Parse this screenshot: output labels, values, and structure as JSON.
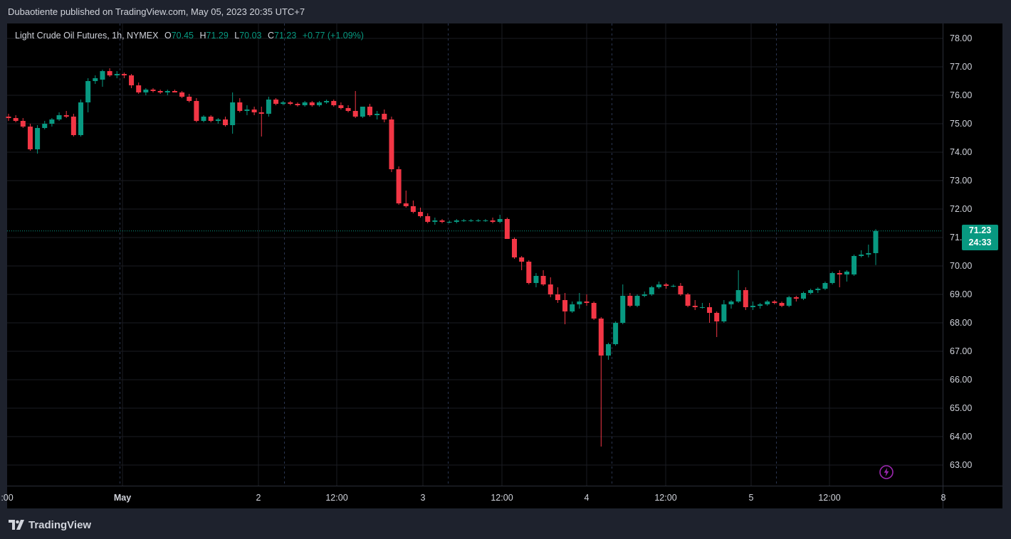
{
  "header": {
    "text": "Dubaotiente published on TradingView.com, May 05, 2023 20:35 UTC+7"
  },
  "legend": {
    "symbol": "Light Crude Oil Futures, 1h, NYMEX",
    "o_label": "O",
    "o_value": "70.45",
    "h_label": "H",
    "h_value": "71.29",
    "l_label": "L",
    "l_value": "70.03",
    "c_label": "C",
    "c_value": "71.23",
    "change": "+0.77 (+1.09%)"
  },
  "price_badge": {
    "price": "71.23",
    "countdown": "24:33"
  },
  "footer": {
    "brand": "TradingView",
    "logo_icon": "tradingview-logo-icon"
  },
  "icons": {
    "flash": "flash-icon"
  },
  "colors": {
    "up": "#089981",
    "down": "#f23645",
    "background": "#000000",
    "outer": "#1e222d",
    "flash": "#9c27b0"
  },
  "chart_data": {
    "type": "candlestick",
    "title": "Light Crude Oil Futures, 1h, NYMEX",
    "y_ticks": [
      "63.00",
      "64.00",
      "65.00",
      "66.00",
      "67.00",
      "68.00",
      "69.00",
      "70.00",
      "71.00",
      "72.00",
      "73.00",
      "74.00",
      "75.00",
      "76.00",
      "77.00",
      "78.00"
    ],
    "x_ticks": [
      {
        "label": ":00",
        "bold": false
      },
      {
        "label": "May",
        "bold": true
      },
      {
        "label": "2",
        "bold": false
      },
      {
        "label": "12:00",
        "bold": false
      },
      {
        "label": "3",
        "bold": false
      },
      {
        "label": "12:00",
        "bold": false
      },
      {
        "label": "4",
        "bold": false
      },
      {
        "label": "12:00",
        "bold": false
      },
      {
        "label": "5",
        "bold": false
      },
      {
        "label": "12:00",
        "bold": false
      },
      {
        "label": "8",
        "bold": false
      }
    ],
    "ylim": [
      62.5,
      78.4
    ],
    "last_price": 71.23,
    "grid": true,
    "candles": [
      {
        "o": 75.25,
        "h": 75.35,
        "l": 75.1,
        "c": 75.2
      },
      {
        "o": 75.2,
        "h": 75.3,
        "l": 75.05,
        "c": 75.1
      },
      {
        "o": 75.1,
        "h": 75.2,
        "l": 74.85,
        "c": 74.9
      },
      {
        "o": 74.9,
        "h": 75.0,
        "l": 74.05,
        "c": 74.1
      },
      {
        "o": 74.1,
        "h": 74.95,
        "l": 73.95,
        "c": 74.85
      },
      {
        "o": 74.85,
        "h": 75.1,
        "l": 74.8,
        "c": 75.0
      },
      {
        "o": 75.0,
        "h": 75.2,
        "l": 74.9,
        "c": 75.15
      },
      {
        "o": 75.15,
        "h": 75.4,
        "l": 75.1,
        "c": 75.3
      },
      {
        "o": 75.3,
        "h": 75.45,
        "l": 75.2,
        "c": 75.25
      },
      {
        "o": 75.25,
        "h": 75.35,
        "l": 74.55,
        "c": 74.6
      },
      {
        "o": 74.6,
        "h": 75.85,
        "l": 74.55,
        "c": 75.75
      },
      {
        "o": 75.75,
        "h": 76.6,
        "l": 75.4,
        "c": 76.5
      },
      {
        "o": 76.5,
        "h": 76.7,
        "l": 76.4,
        "c": 76.6
      },
      {
        "o": 76.55,
        "h": 76.9,
        "l": 76.3,
        "c": 76.85
      },
      {
        "o": 76.85,
        "h": 76.95,
        "l": 76.65,
        "c": 76.7
      },
      {
        "o": 76.7,
        "h": 76.85,
        "l": 76.6,
        "c": 76.75
      },
      {
        "o": 76.75,
        "h": 76.8,
        "l": 76.6,
        "c": 76.7
      },
      {
        "o": 76.7,
        "h": 76.75,
        "l": 76.25,
        "c": 76.35
      },
      {
        "o": 76.35,
        "h": 76.45,
        "l": 76.05,
        "c": 76.1
      },
      {
        "o": 76.1,
        "h": 76.25,
        "l": 76.0,
        "c": 76.2
      },
      {
        "o": 76.2,
        "h": 76.25,
        "l": 76.1,
        "c": 76.15
      },
      {
        "o": 76.15,
        "h": 76.2,
        "l": 76.05,
        "c": 76.1
      },
      {
        "o": 76.1,
        "h": 76.2,
        "l": 76.0,
        "c": 76.15
      },
      {
        "o": 76.15,
        "h": 76.2,
        "l": 76.1,
        "c": 76.1
      },
      {
        "o": 76.1,
        "h": 76.15,
        "l": 75.9,
        "c": 75.95
      },
      {
        "o": 75.95,
        "h": 76.05,
        "l": 75.75,
        "c": 75.8
      },
      {
        "o": 75.8,
        "h": 75.9,
        "l": 75.05,
        "c": 75.1
      },
      {
        "o": 75.1,
        "h": 75.3,
        "l": 75.05,
        "c": 75.25
      },
      {
        "o": 75.25,
        "h": 75.3,
        "l": 75.05,
        "c": 75.1
      },
      {
        "o": 75.1,
        "h": 75.2,
        "l": 75.0,
        "c": 75.15
      },
      {
        "o": 75.15,
        "h": 75.25,
        "l": 74.9,
        "c": 74.95
      },
      {
        "o": 74.95,
        "h": 76.1,
        "l": 74.65,
        "c": 75.75
      },
      {
        "o": 75.75,
        "h": 75.9,
        "l": 75.4,
        "c": 75.45
      },
      {
        "o": 75.45,
        "h": 75.65,
        "l": 75.3,
        "c": 75.5
      },
      {
        "o": 75.5,
        "h": 75.6,
        "l": 75.3,
        "c": 75.4
      },
      {
        "o": 75.4,
        "h": 75.6,
        "l": 74.55,
        "c": 75.35
      },
      {
        "o": 75.35,
        "h": 75.95,
        "l": 75.25,
        "c": 75.85
      },
      {
        "o": 75.85,
        "h": 75.9,
        "l": 75.65,
        "c": 75.7
      },
      {
        "o": 75.7,
        "h": 75.8,
        "l": 75.65,
        "c": 75.75
      },
      {
        "o": 75.75,
        "h": 75.8,
        "l": 75.65,
        "c": 75.7
      },
      {
        "o": 75.7,
        "h": 75.75,
        "l": 75.6,
        "c": 75.65
      },
      {
        "o": 75.65,
        "h": 75.8,
        "l": 75.6,
        "c": 75.75
      },
      {
        "o": 75.75,
        "h": 75.8,
        "l": 75.6,
        "c": 75.65
      },
      {
        "o": 75.65,
        "h": 75.8,
        "l": 75.6,
        "c": 75.75
      },
      {
        "o": 75.75,
        "h": 75.85,
        "l": 75.7,
        "c": 75.8
      },
      {
        "o": 75.8,
        "h": 75.85,
        "l": 75.6,
        "c": 75.65
      },
      {
        "o": 75.65,
        "h": 75.75,
        "l": 75.5,
        "c": 75.55
      },
      {
        "o": 75.55,
        "h": 75.65,
        "l": 75.4,
        "c": 75.45
      },
      {
        "o": 75.45,
        "h": 76.15,
        "l": 75.2,
        "c": 75.25
      },
      {
        "o": 75.25,
        "h": 75.6,
        "l": 75.2,
        "c": 75.6
      },
      {
        "o": 75.6,
        "h": 75.7,
        "l": 75.25,
        "c": 75.3
      },
      {
        "o": 75.3,
        "h": 75.45,
        "l": 75.15,
        "c": 75.35
      },
      {
        "o": 75.35,
        "h": 75.5,
        "l": 75.05,
        "c": 75.15
      },
      {
        "o": 75.15,
        "h": 75.25,
        "l": 73.3,
        "c": 73.4
      },
      {
        "o": 73.4,
        "h": 73.5,
        "l": 72.15,
        "c": 72.2
      },
      {
        "o": 72.2,
        "h": 72.65,
        "l": 72.05,
        "c": 72.1
      },
      {
        "o": 72.1,
        "h": 72.3,
        "l": 71.85,
        "c": 71.9
      },
      {
        "o": 71.9,
        "h": 72.05,
        "l": 71.7,
        "c": 71.75
      },
      {
        "o": 71.75,
        "h": 71.85,
        "l": 71.5,
        "c": 71.55
      },
      {
        "o": 71.55,
        "h": 71.7,
        "l": 71.45,
        "c": 71.6
      },
      {
        "o": 71.6,
        "h": 71.65,
        "l": 71.5,
        "c": 71.55
      },
      {
        "o": 71.55,
        "h": 71.6,
        "l": 71.5,
        "c": 71.55
      },
      {
        "o": 71.55,
        "h": 71.65,
        "l": 71.5,
        "c": 71.6
      },
      {
        "o": 71.6,
        "h": 71.65,
        "l": 71.55,
        "c": 71.6
      },
      {
        "o": 71.6,
        "h": 71.65,
        "l": 71.55,
        "c": 71.6
      },
      {
        "o": 71.6,
        "h": 71.65,
        "l": 71.55,
        "c": 71.6
      },
      {
        "o": 71.6,
        "h": 71.65,
        "l": 71.55,
        "c": 71.6
      },
      {
        "o": 71.6,
        "h": 71.7,
        "l": 71.5,
        "c": 71.55
      },
      {
        "o": 71.55,
        "h": 71.8,
        "l": 71.5,
        "c": 71.65
      },
      {
        "o": 71.65,
        "h": 71.7,
        "l": 70.95,
        "c": 70.95
      },
      {
        "o": 70.95,
        "h": 71.0,
        "l": 70.25,
        "c": 70.3
      },
      {
        "o": 70.3,
        "h": 70.35,
        "l": 69.85,
        "c": 70.15
      },
      {
        "o": 70.15,
        "h": 70.2,
        "l": 69.35,
        "c": 69.4
      },
      {
        "o": 69.4,
        "h": 69.75,
        "l": 69.25,
        "c": 69.65
      },
      {
        "o": 69.65,
        "h": 69.85,
        "l": 69.3,
        "c": 69.35
      },
      {
        "o": 69.35,
        "h": 69.6,
        "l": 68.9,
        "c": 69.0
      },
      {
        "o": 69.0,
        "h": 69.25,
        "l": 68.7,
        "c": 68.8
      },
      {
        "o": 68.8,
        "h": 69.05,
        "l": 67.95,
        "c": 68.4
      },
      {
        "o": 68.4,
        "h": 68.75,
        "l": 68.35,
        "c": 68.65
      },
      {
        "o": 68.65,
        "h": 69.05,
        "l": 68.5,
        "c": 68.75
      },
      {
        "o": 68.75,
        "h": 69.0,
        "l": 68.6,
        "c": 68.7
      },
      {
        "o": 68.7,
        "h": 68.75,
        "l": 68.1,
        "c": 68.15
      },
      {
        "o": 68.15,
        "h": 68.2,
        "l": 63.65,
        "c": 66.85
      },
      {
        "o": 66.85,
        "h": 67.3,
        "l": 66.7,
        "c": 67.25
      },
      {
        "o": 67.25,
        "h": 68.05,
        "l": 67.2,
        "c": 68.0
      },
      {
        "o": 68.0,
        "h": 69.35,
        "l": 67.95,
        "c": 68.95
      },
      {
        "o": 68.95,
        "h": 69.05,
        "l": 68.55,
        "c": 68.6
      },
      {
        "o": 68.6,
        "h": 69.0,
        "l": 68.55,
        "c": 68.95
      },
      {
        "o": 68.95,
        "h": 69.1,
        "l": 68.9,
        "c": 69.0
      },
      {
        "o": 69.0,
        "h": 69.3,
        "l": 68.95,
        "c": 69.25
      },
      {
        "o": 69.25,
        "h": 69.45,
        "l": 69.2,
        "c": 69.35
      },
      {
        "o": 69.35,
        "h": 69.4,
        "l": 69.2,
        "c": 69.3
      },
      {
        "o": 69.3,
        "h": 69.35,
        "l": 69.25,
        "c": 69.3
      },
      {
        "o": 69.3,
        "h": 69.4,
        "l": 68.95,
        "c": 69.0
      },
      {
        "o": 69.0,
        "h": 69.05,
        "l": 68.55,
        "c": 68.6
      },
      {
        "o": 68.6,
        "h": 68.8,
        "l": 68.45,
        "c": 68.55
      },
      {
        "o": 68.55,
        "h": 68.7,
        "l": 68.5,
        "c": 68.55
      },
      {
        "o": 68.55,
        "h": 68.7,
        "l": 68.0,
        "c": 68.35
      },
      {
        "o": 68.35,
        "h": 68.4,
        "l": 67.5,
        "c": 68.05
      },
      {
        "o": 68.05,
        "h": 68.8,
        "l": 68.0,
        "c": 68.65
      },
      {
        "o": 68.65,
        "h": 68.8,
        "l": 68.5,
        "c": 68.75
      },
      {
        "o": 68.75,
        "h": 69.85,
        "l": 68.7,
        "c": 69.15
      },
      {
        "o": 69.15,
        "h": 69.25,
        "l": 68.45,
        "c": 68.55
      },
      {
        "o": 68.55,
        "h": 68.75,
        "l": 68.45,
        "c": 68.6
      },
      {
        "o": 68.6,
        "h": 68.7,
        "l": 68.5,
        "c": 68.65
      },
      {
        "o": 68.65,
        "h": 68.8,
        "l": 68.6,
        "c": 68.75
      },
      {
        "o": 68.75,
        "h": 68.8,
        "l": 68.65,
        "c": 68.7
      },
      {
        "o": 68.7,
        "h": 68.75,
        "l": 68.55,
        "c": 68.6
      },
      {
        "o": 68.6,
        "h": 68.95,
        "l": 68.55,
        "c": 68.9
      },
      {
        "o": 68.9,
        "h": 68.95,
        "l": 68.75,
        "c": 68.85
      },
      {
        "o": 68.85,
        "h": 69.1,
        "l": 68.8,
        "c": 69.05
      },
      {
        "o": 69.05,
        "h": 69.2,
        "l": 69.0,
        "c": 69.15
      },
      {
        "o": 69.15,
        "h": 69.25,
        "l": 69.05,
        "c": 69.2
      },
      {
        "o": 69.2,
        "h": 69.45,
        "l": 69.15,
        "c": 69.4
      },
      {
        "o": 69.4,
        "h": 69.8,
        "l": 69.35,
        "c": 69.75
      },
      {
        "o": 69.75,
        "h": 69.85,
        "l": 69.25,
        "c": 69.7
      },
      {
        "o": 69.7,
        "h": 69.85,
        "l": 69.45,
        "c": 69.8
      },
      {
        "o": 69.7,
        "h": 70.4,
        "l": 69.65,
        "c": 70.35
      },
      {
        "o": 70.35,
        "h": 70.55,
        "l": 70.3,
        "c": 70.4
      },
      {
        "o": 70.4,
        "h": 70.75,
        "l": 70.3,
        "c": 70.45
      },
      {
        "o": 70.45,
        "h": 71.29,
        "l": 70.03,
        "c": 71.23
      }
    ]
  }
}
